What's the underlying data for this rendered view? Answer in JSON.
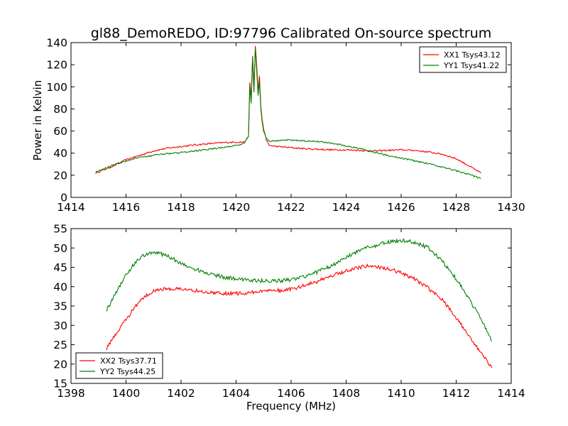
{
  "figure": {
    "title": "gl88_DemoREDO, ID:97796 Calibrated On-source spectrum",
    "ylabel": "Power in Kelvin",
    "xlabel": "Frequency (MHz)"
  },
  "chart_data": [
    {
      "type": "line",
      "title": "gl88_DemoREDO, ID:97796 Calibrated On-source spectrum",
      "xlabel": "",
      "ylabel": "Power in Kelvin",
      "xlim": [
        1414,
        1430
      ],
      "ylim": [
        0,
        140
      ],
      "xticks": [
        1414,
        1416,
        1418,
        1420,
        1422,
        1424,
        1426,
        1428,
        1430
      ],
      "yticks": [
        0,
        20,
        40,
        60,
        80,
        100,
        120,
        140
      ],
      "grid": false,
      "legend_position": "top-right",
      "series": [
        {
          "name": "XX1 Tsys43.12",
          "color": "#ff0000",
          "x": [
            1414.9,
            1415.5,
            1416,
            1416.5,
            1417,
            1417.5,
            1418,
            1418.5,
            1419,
            1419.5,
            1420,
            1420.3,
            1420.45,
            1420.5,
            1420.55,
            1420.6,
            1420.65,
            1420.7,
            1420.75,
            1420.8,
            1420.85,
            1420.9,
            1420.95,
            1421,
            1421.1,
            1421.2,
            1421.5,
            1422,
            1422.5,
            1423,
            1423.5,
            1424,
            1424.5,
            1425,
            1425.5,
            1426,
            1426.5,
            1427,
            1427.5,
            1428,
            1428.5,
            1428.9
          ],
          "values": [
            22,
            28,
            34,
            38,
            42,
            44.5,
            46,
            47.5,
            48.5,
            49.5,
            50,
            50,
            55,
            104,
            90,
            128,
            100,
            137,
            120,
            96,
            110,
            82,
            70,
            62,
            52,
            47,
            46,
            45,
            44,
            43.5,
            43,
            43,
            42.5,
            42,
            42.5,
            43,
            42.5,
            41,
            39,
            35,
            28,
            22
          ]
        },
        {
          "name": "YY1 Tsys41.22",
          "color": "#008000",
          "x": [
            1414.9,
            1415.5,
            1416,
            1416.5,
            1417,
            1417.5,
            1418,
            1418.5,
            1419,
            1419.5,
            1420,
            1420.3,
            1420.45,
            1420.5,
            1420.55,
            1420.6,
            1420.65,
            1420.7,
            1420.75,
            1420.8,
            1420.85,
            1420.9,
            1420.95,
            1421,
            1421.1,
            1421.2,
            1421.5,
            1422,
            1422.5,
            1423,
            1423.5,
            1424,
            1424.5,
            1425,
            1425.5,
            1426,
            1426.5,
            1427,
            1427.5,
            1428,
            1428.5,
            1428.9
          ],
          "values": [
            23,
            29,
            33,
            36,
            38,
            39.5,
            40.5,
            42,
            43.5,
            45,
            47,
            49,
            55,
            100,
            85,
            126,
            95,
            135,
            115,
            92,
            105,
            80,
            68,
            60,
            53,
            51,
            51.5,
            52,
            51,
            50.5,
            49,
            46.5,
            44,
            41,
            38,
            35.5,
            33,
            30.5,
            27.5,
            24,
            20.5,
            17
          ]
        }
      ]
    },
    {
      "type": "line",
      "title": "",
      "xlabel": "Frequency (MHz)",
      "ylabel": "",
      "xlim": [
        1398,
        1414
      ],
      "ylim": [
        15,
        55
      ],
      "xticks": [
        1398,
        1400,
        1402,
        1404,
        1406,
        1408,
        1410,
        1412,
        1414
      ],
      "yticks": [
        15,
        20,
        25,
        30,
        35,
        40,
        45,
        50,
        55
      ],
      "grid": false,
      "legend_position": "bottom-left",
      "series": [
        {
          "name": "XX2 Tsys37.71",
          "color": "#ff0000",
          "x": [
            1399.3,
            1399.6,
            1400,
            1400.3,
            1400.6,
            1401,
            1401.5,
            1402,
            1402.5,
            1403,
            1403.5,
            1404,
            1404.5,
            1405,
            1405.5,
            1406,
            1406.5,
            1407,
            1407.5,
            1408,
            1408.5,
            1408.8,
            1409.2,
            1409.6,
            1410,
            1410.5,
            1411,
            1411.5,
            1412,
            1412.5,
            1413,
            1413.3
          ],
          "values": [
            24,
            27.5,
            31.5,
            34.5,
            37,
            39,
            39.5,
            39.5,
            39,
            38.5,
            38.3,
            38.2,
            38.5,
            38.8,
            39,
            39.3,
            40.3,
            41.5,
            43,
            44,
            45,
            45.5,
            45,
            44.5,
            43.5,
            42,
            39.5,
            36.5,
            32,
            27,
            22,
            19
          ]
        },
        {
          "name": "YY2 Tsys44.25",
          "color": "#008000",
          "x": [
            1399.3,
            1399.6,
            1400,
            1400.3,
            1400.6,
            1401,
            1401.5,
            1402,
            1402.5,
            1403,
            1403.5,
            1404,
            1404.5,
            1405,
            1405.5,
            1406,
            1406.5,
            1407,
            1407.5,
            1408,
            1408.5,
            1409,
            1409.5,
            1410,
            1410.5,
            1411,
            1411.5,
            1412,
            1412.5,
            1413,
            1413.3
          ],
          "values": [
            34,
            38,
            43,
            46,
            48,
            49,
            48,
            46,
            44.5,
            43.5,
            42.5,
            42,
            41.7,
            41.5,
            41.5,
            41.8,
            42.5,
            44,
            45.5,
            47.5,
            49.5,
            50.5,
            51.5,
            52,
            51.5,
            50,
            46.5,
            42,
            36.5,
            30.5,
            26
          ]
        }
      ]
    }
  ]
}
